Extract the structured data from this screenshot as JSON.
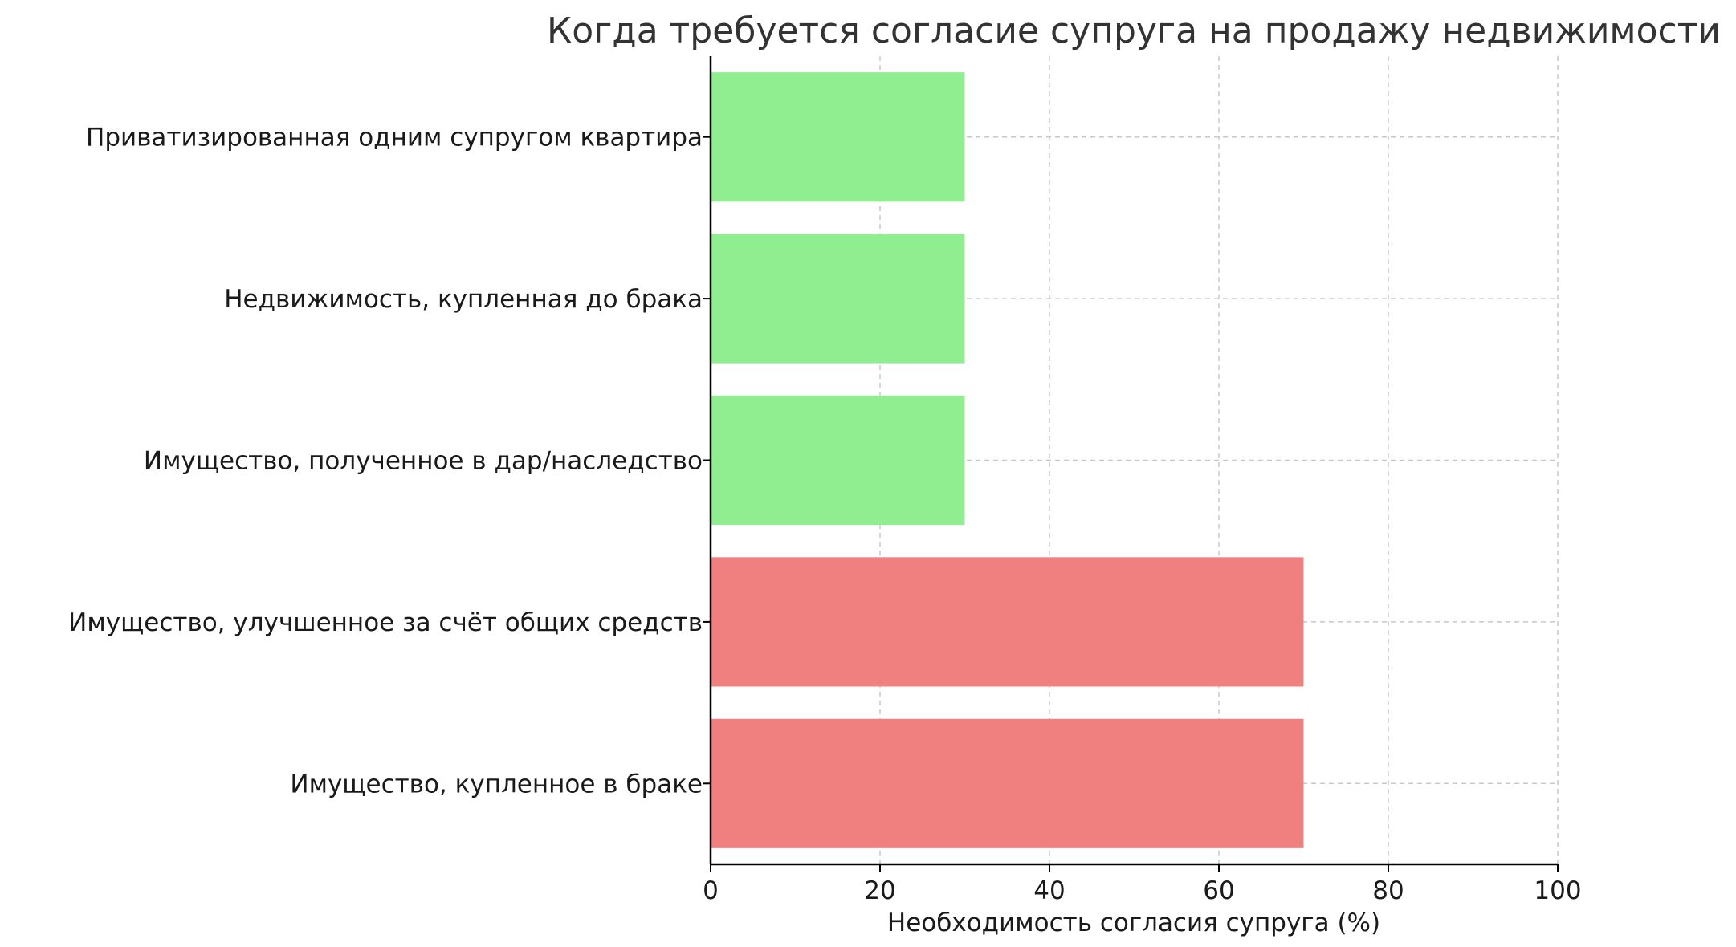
{
  "chart_data": {
    "type": "bar",
    "orientation": "horizontal",
    "title": "Когда требуется согласие супруга на продажу недвижимости",
    "xlabel": "Необходимость согласия супруга (%)",
    "ylabel": "",
    "xlim": [
      0,
      100
    ],
    "xticks": [
      0,
      20,
      40,
      60,
      80,
      100
    ],
    "grid": true,
    "categories": [
      "Имущество, купленное в браке",
      "Имущество, улучшенное за счёт общих средств",
      "Имущество, полученное в дар/наследство",
      "Недвижимость, купленная до брака",
      "Приватизированная одним супругом квартира"
    ],
    "values": [
      70,
      70,
      30,
      30,
      30
    ],
    "bar_colors": [
      "#f08080",
      "#f08080",
      "#90ee90",
      "#90ee90",
      "#90ee90"
    ]
  }
}
